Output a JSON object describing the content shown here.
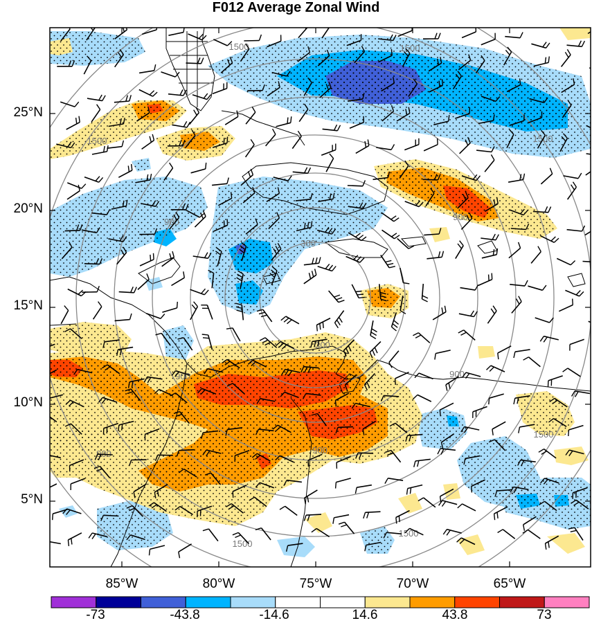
{
  "title": "F012 Average Zonal Wind",
  "lat_labels": [
    "25°N",
    "20°N",
    "15°N",
    "10°N",
    "5°N"
  ],
  "lon_labels": [
    "85°W",
    "80°W",
    "75°W",
    "70°W",
    "65°W"
  ],
  "ring_labels": [
    "300",
    "900",
    "1500"
  ],
  "colorbar": {
    "colors": [
      "#a030d8",
      "#000098",
      "#4060d8",
      "#00b4ff",
      "#a8dcfa",
      "#ffffff",
      "#ffffff",
      "#fce890",
      "#ff9c00",
      "#ff4400",
      "#c01818",
      "#ff80c0"
    ],
    "tick_labels": [
      "-73",
      "-43.8",
      "-14.6",
      "14.6",
      "43.8",
      "73"
    ]
  },
  "palette": {
    "light_blue": "#a8dcfa",
    "blue": "#00b4ff",
    "dark_blue": "#4060d8",
    "yellow": "#fce890",
    "orange": "#ff9c00",
    "red": "#ff4400"
  }
}
